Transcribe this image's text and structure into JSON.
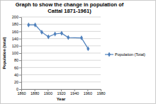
{
  "chart_data": {
    "type": "line",
    "title": "Graph to show the change in population of Cattal 1871-1961)",
    "x_label": "Year",
    "y_label": "Population (total)",
    "x": [
      1871,
      1881,
      1891,
      1901,
      1911,
      1921,
      1931,
      1951,
      1961
    ],
    "series": [
      {
        "name": "Population (Total)",
        "color": "#4f81bd",
        "marker": "diamond",
        "values": [
          178,
          178,
          158,
          145,
          153,
          155,
          143,
          142,
          112
        ]
      }
    ],
    "xlim": [
      1860,
      1980
    ],
    "xticks": [
      1860,
      1880,
      1900,
      1920,
      1940,
      1960,
      1980
    ],
    "ylim": [
      0,
      200
    ],
    "yticks": [
      0,
      20,
      40,
      60,
      80,
      100,
      120,
      140,
      160,
      180,
      200
    ],
    "grid": true,
    "legend": "right"
  }
}
